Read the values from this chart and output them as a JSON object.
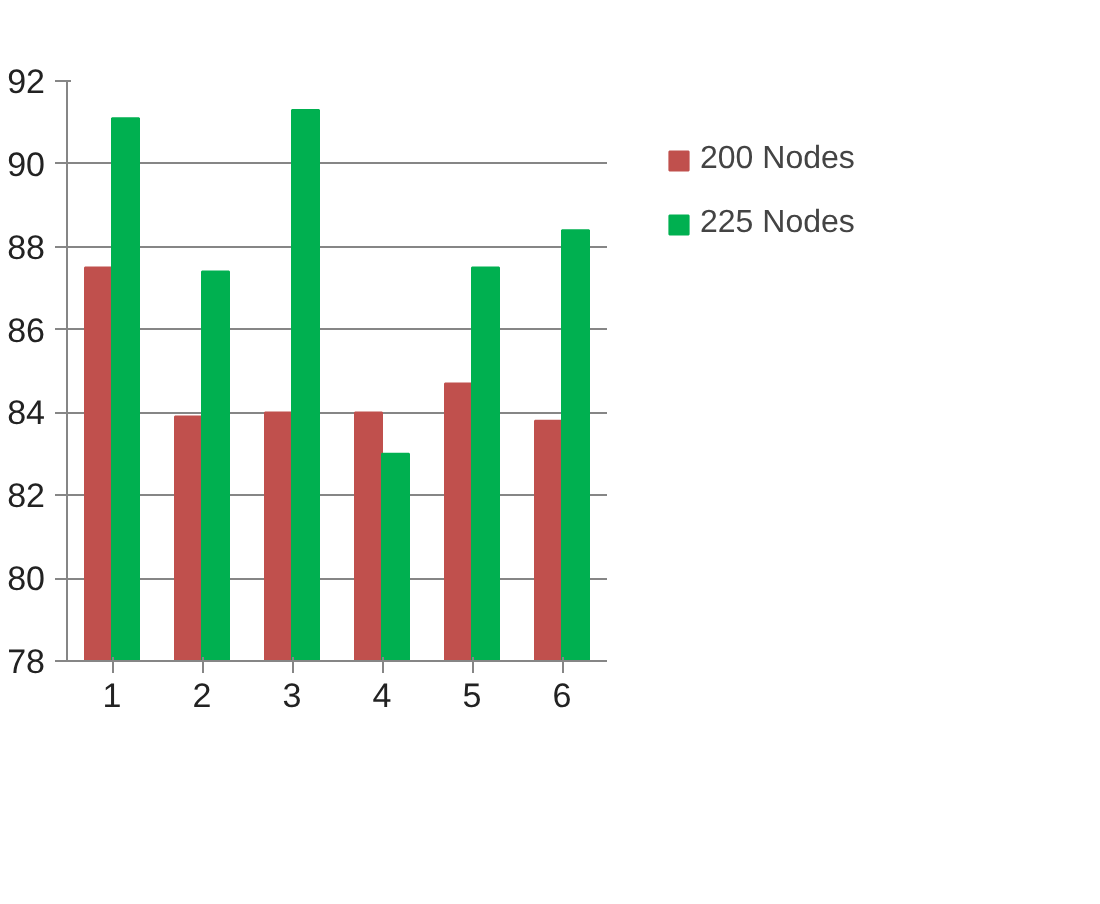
{
  "chart_data": {
    "type": "bar",
    "categories": [
      "1",
      "2",
      "3",
      "4",
      "5",
      "6"
    ],
    "series": [
      {
        "name": "200 Nodes",
        "color": "#c0504d",
        "values": [
          87.5,
          83.9,
          84.0,
          84.0,
          84.7,
          83.8
        ]
      },
      {
        "name": "225 Nodes",
        "color": "#00b050",
        "values": [
          91.1,
          87.4,
          91.3,
          83.0,
          87.5,
          88.4
        ]
      }
    ],
    "ylim": [
      78,
      92
    ],
    "yticks": [
      78,
      80,
      82,
      84,
      86,
      88,
      90,
      92
    ],
    "grid": "y",
    "legend": "right"
  }
}
